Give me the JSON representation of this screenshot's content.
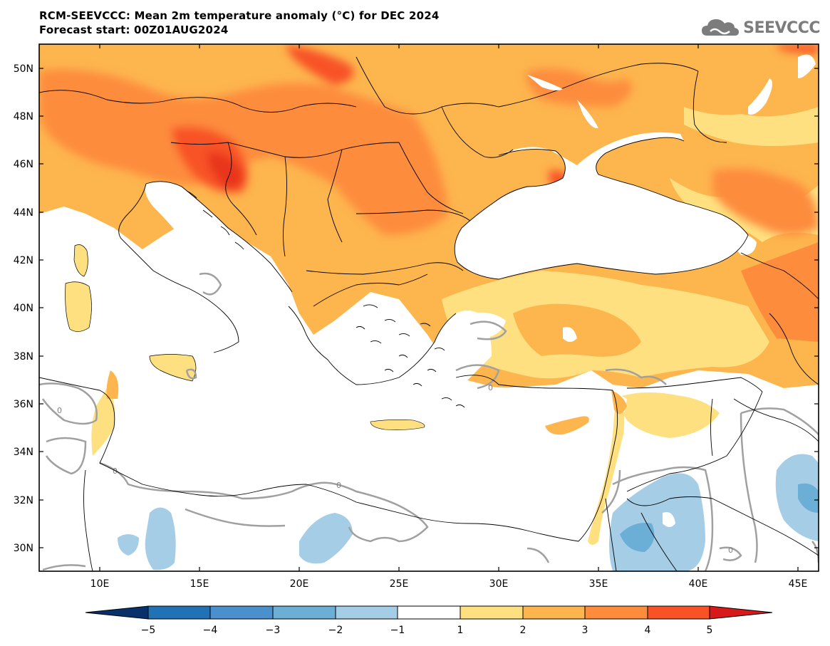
{
  "title": {
    "line1": "RCM-SEEVCCC: Mean 2m temperature anomaly (°C) for DEC 2024",
    "line2": "Forecast start: 00Z01AUG2024"
  },
  "logo": {
    "text": "SEEVCCC",
    "icon": "cloud-icon"
  },
  "map": {
    "lon_range": [
      7,
      46
    ],
    "lat_range": [
      29,
      51
    ],
    "lat_labels": [
      "50N",
      "48N",
      "46N",
      "44N",
      "42N",
      "40N",
      "38N",
      "36N",
      "34N",
      "32N",
      "30N"
    ],
    "lon_labels": [
      "10E",
      "15E",
      "20E",
      "25E",
      "30E",
      "35E",
      "40E",
      "45E"
    ],
    "contour_label": "0",
    "colors": {
      "land_neutral": "#ffffff",
      "sea": "#ffffff",
      "border": "#000000",
      "zero_contour": "#a0a0a0"
    }
  },
  "colorbar": {
    "ticks": [
      "−5",
      "−4",
      "−3",
      "−2",
      "−1",
      "1",
      "2",
      "3",
      "4",
      "5"
    ],
    "colors": [
      "#08306b",
      "#2171b5",
      "#4a90cc",
      "#6baed6",
      "#a6cde6",
      "#ffffff",
      "#ffe080",
      "#fdb54e",
      "#fd8c3c",
      "#f85226",
      "#d7191c"
    ]
  }
}
